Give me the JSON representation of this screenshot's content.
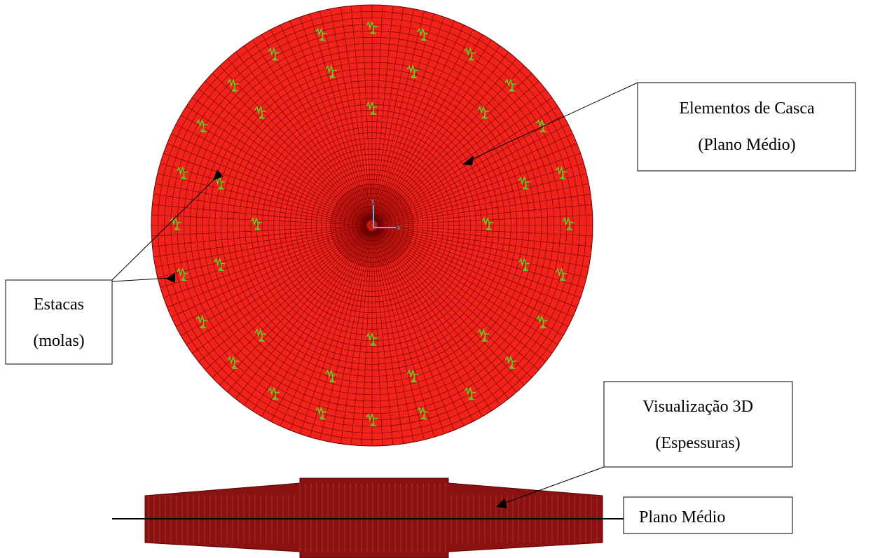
{
  "labels": {
    "shell": {
      "line1": "Elementos de Casca",
      "line2": "(Plano Médio)"
    },
    "piles": {
      "line1": "Estacas",
      "line2": "(molas)"
    },
    "view3d": {
      "line1": "Visualização 3D",
      "line2": "(Espessuras)"
    },
    "midplane": "Plano Médio"
  },
  "axes": {
    "y": "y",
    "x": "x"
  }
}
